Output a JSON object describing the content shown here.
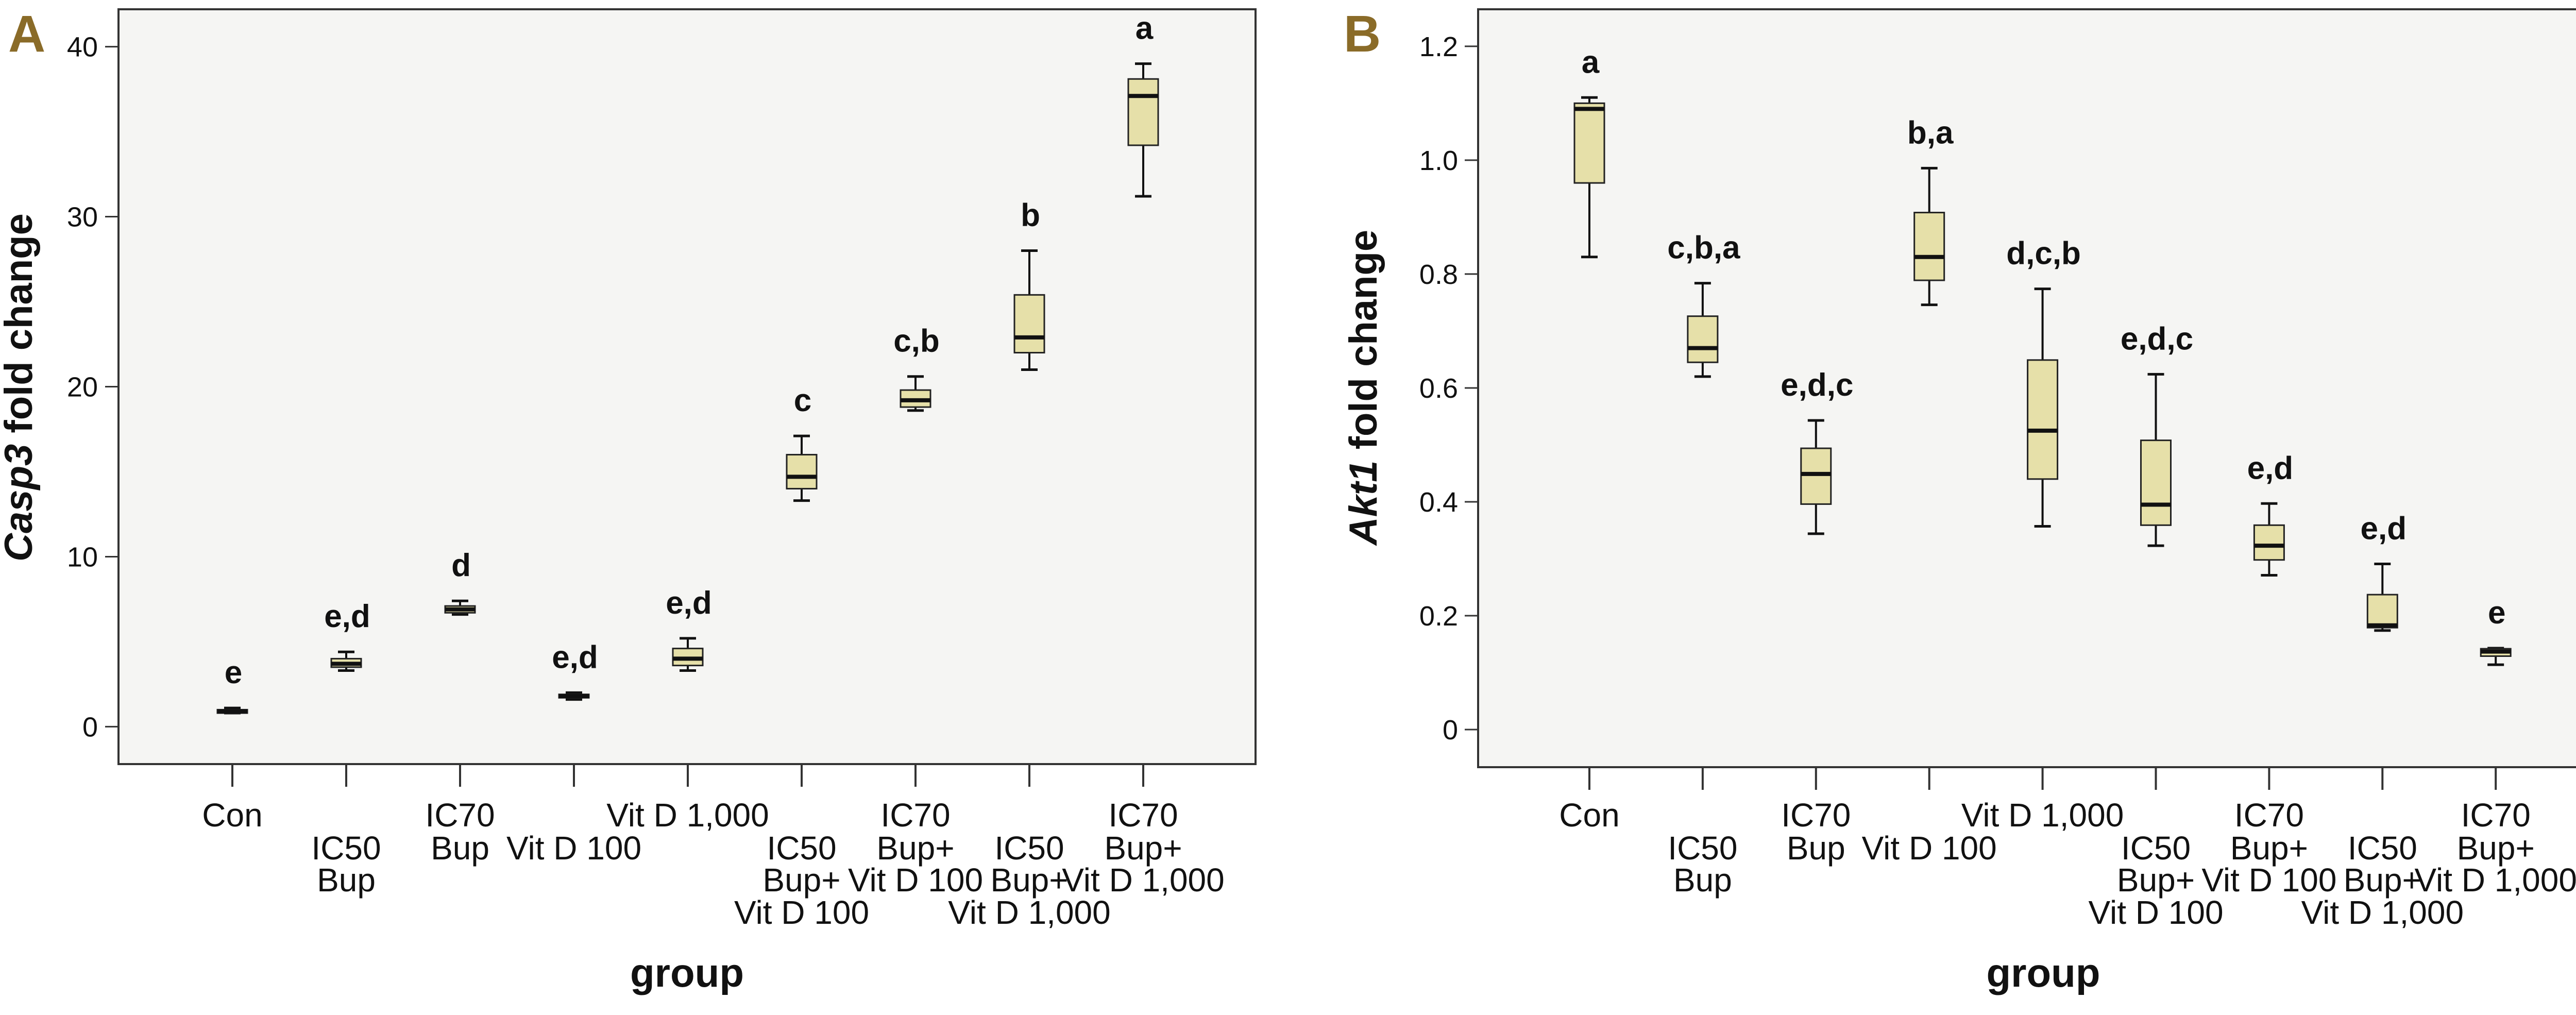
{
  "colors": {
    "box_fill": "#e6e0a9",
    "plot_bg": "#f5f5f3",
    "panel_letter": "#8a6b28",
    "line": "#111111"
  },
  "chart_data": [
    {
      "type": "boxplot",
      "panel": "A",
      "xlabel": "group",
      "ylabel_italic": "Casp3",
      "ylabel_rest": " fold change",
      "ylim": [
        -2.2,
        42.2
      ],
      "yticks": [
        0,
        10,
        20,
        30,
        40
      ],
      "ytick_labels": [
        "0",
        "10",
        "20",
        "30",
        "40"
      ],
      "grid": false,
      "categories": [
        [
          "Con"
        ],
        [
          "IC50",
          "Bup"
        ],
        [
          "IC70",
          "Bup"
        ],
        [
          "Vit D 100"
        ],
        [
          "Vit D 1,000"
        ],
        [
          "IC50",
          "Bup+",
          "Vit D 100"
        ],
        [
          "IC70",
          "Bup+",
          "Vit D 100"
        ],
        [
          "IC50",
          "Bup+",
          "Vit D 1,000"
        ],
        [
          "IC70",
          "Bup+",
          "Vit D 1,000"
        ]
      ],
      "boxes": [
        {
          "min": 0.8,
          "q1": 0.8,
          "median": 0.9,
          "q3": 1.0,
          "max": 1.1
        },
        {
          "min": 3.3,
          "q1": 3.5,
          "median": 3.7,
          "q3": 4.0,
          "max": 4.4
        },
        {
          "min": 6.6,
          "q1": 6.7,
          "median": 6.9,
          "q3": 7.1,
          "max": 7.4
        },
        {
          "min": 1.6,
          "q1": 1.7,
          "median": 1.8,
          "q3": 1.9,
          "max": 2.0
        },
        {
          "min": 3.3,
          "q1": 3.6,
          "median": 4.0,
          "q3": 4.6,
          "max": 5.2
        },
        {
          "min": 13.3,
          "q1": 14.0,
          "median": 14.7,
          "q3": 16.0,
          "max": 17.1
        },
        {
          "min": 18.6,
          "q1": 18.8,
          "median": 19.2,
          "q3": 19.8,
          "max": 20.6
        },
        {
          "min": 21.0,
          "q1": 22.0,
          "median": 22.9,
          "q3": 25.4,
          "max": 28.0
        },
        {
          "min": 31.2,
          "q1": 34.2,
          "median": 37.1,
          "q3": 38.1,
          "max": 39.0
        }
      ],
      "significance": [
        "e",
        "e,d",
        "d",
        "e,d",
        "e,d",
        "c",
        "c,b",
        "b",
        "a"
      ]
    },
    {
      "type": "boxplot",
      "panel": "B",
      "xlabel": "group",
      "ylabel_italic": "Akt1",
      "ylabel_rest": " fold change",
      "ylim": [
        -0.066,
        1.265
      ],
      "yticks": [
        0,
        0.2,
        0.4,
        0.6,
        0.8,
        1.0,
        1.2
      ],
      "ytick_labels": [
        "0",
        "0.2",
        "0.4",
        "0.6",
        "0.8",
        "1.0",
        "1.2"
      ],
      "grid": false,
      "categories": [
        [
          "Con"
        ],
        [
          "IC50",
          "Bup"
        ],
        [
          "IC70",
          "Bup"
        ],
        [
          "Vit D 100"
        ],
        [
          "Vit D 1,000"
        ],
        [
          "IC50",
          "Bup+",
          "Vit D 100"
        ],
        [
          "IC70",
          "Bup+",
          "Vit D 100"
        ],
        [
          "IC50",
          "Bup+",
          "Vit D 1,000"
        ],
        [
          "IC70",
          "Bup+",
          "Vit D 1,000"
        ]
      ],
      "boxes": [
        {
          "min": 0.83,
          "q1": 0.96,
          "median": 1.09,
          "q3": 1.1,
          "max": 1.11
        },
        {
          "min": 0.62,
          "q1": 0.645,
          "median": 0.67,
          "q3": 0.726,
          "max": 0.784
        },
        {
          "min": 0.344,
          "q1": 0.396,
          "median": 0.449,
          "q3": 0.494,
          "max": 0.543
        },
        {
          "min": 0.746,
          "q1": 0.789,
          "median": 0.83,
          "q3": 0.908,
          "max": 0.986
        },
        {
          "min": 0.357,
          "q1": 0.44,
          "median": 0.525,
          "q3": 0.649,
          "max": 0.774
        },
        {
          "min": 0.323,
          "q1": 0.359,
          "median": 0.395,
          "q3": 0.508,
          "max": 0.624
        },
        {
          "min": 0.271,
          "q1": 0.298,
          "median": 0.323,
          "q3": 0.359,
          "max": 0.397
        },
        {
          "min": 0.174,
          "q1": 0.179,
          "median": 0.183,
          "q3": 0.237,
          "max": 0.291
        },
        {
          "min": 0.114,
          "q1": 0.129,
          "median": 0.137,
          "q3": 0.142,
          "max": 0.143
        }
      ],
      "significance": [
        "a",
        "c,b,a",
        "e,d,c",
        "b,a",
        "d,c,b",
        "e,d,c",
        "e,d",
        "e,d",
        "e"
      ]
    }
  ]
}
